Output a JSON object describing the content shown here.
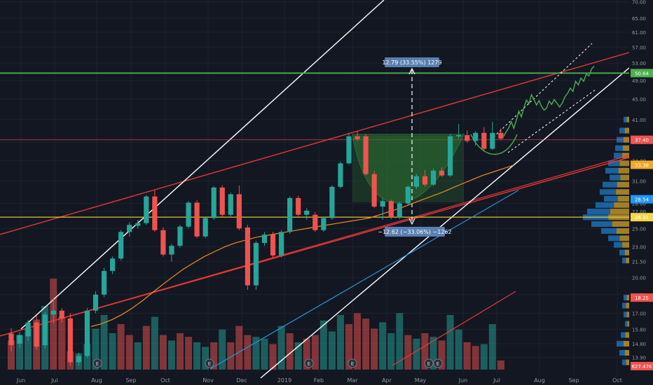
{
  "chart_data": {
    "type": "candlestick",
    "price_axis": {
      "ticks": [
        "70.00",
        "65.00",
        "61.00",
        "57.00",
        "53.00",
        "49.00",
        "45.00",
        "41.00",
        "37.00",
        "34.00",
        "31.00",
        "28.00",
        "27.00",
        "25.00",
        "23.00",
        "21.50",
        "20.00",
        "18.50",
        "17.00",
        "15.80",
        "14.80",
        "13.90"
      ],
      "scale": "log",
      "ylim": [
        13.2,
        70
      ]
    },
    "time_axis": {
      "labels": [
        "Jun",
        "Jul",
        "Aug",
        "Sep",
        "Oct",
        "Nov",
        "Dec",
        "2019",
        "Feb",
        "Mar",
        "Apr",
        "May",
        "Jun",
        "Jul",
        "Aug",
        "Sep",
        "Oct"
      ]
    },
    "price_tags": [
      {
        "text": "50.64",
        "value": 50.64,
        "color": "#4caf50"
      },
      {
        "text": "37.40",
        "value": 37.4,
        "color": "#ef5350"
      },
      {
        "text": "33.38",
        "value": 33.38,
        "color": "#f5a623"
      },
      {
        "text": "28.54",
        "value": 28.54,
        "color": "#2196f3"
      },
      {
        "text": "26.31",
        "value": 26.31,
        "color": "#f5d742"
      },
      {
        "text": "18.25",
        "value": 18.25,
        "color": "#ef5350"
      },
      {
        "text": "627.47K",
        "value": null,
        "color": "#ef5350"
      }
    ],
    "measure_labels": [
      {
        "text": "12.79 (33.55%) 1279"
      },
      {
        "text": "−12.62 (−33.06%) −1262"
      }
    ],
    "earnings_markers": [
      "E",
      "E",
      "E",
      "E",
      "E",
      "E"
    ],
    "candles": [
      {
        "t": "Jun-1",
        "o": 15.5,
        "h": 15.9,
        "l": 14.3,
        "c": 14.7
      },
      {
        "t": "Jun-2",
        "o": 14.8,
        "h": 15.6,
        "l": 14.5,
        "c": 15.4
      },
      {
        "t": "Jun-3",
        "o": 15.3,
        "h": 16.5,
        "l": 15.0,
        "c": 16.3
      },
      {
        "t": "Jun-4",
        "o": 16.3,
        "h": 16.8,
        "l": 14.4,
        "c": 14.6
      },
      {
        "t": "Jul-1",
        "o": 14.7,
        "h": 17.1,
        "l": 14.5,
        "c": 16.9
      },
      {
        "t": "Jul-2",
        "o": 16.9,
        "h": 18.2,
        "l": 16.2,
        "c": 17.2
      },
      {
        "t": "Jul-3",
        "o": 17.2,
        "h": 17.4,
        "l": 16.3,
        "c": 16.6
      },
      {
        "t": "Jul-4",
        "o": 16.6,
        "h": 17.0,
        "l": 13.4,
        "c": 13.6
      },
      {
        "t": "Aug-1",
        "o": 13.6,
        "h": 14.2,
        "l": 13.4,
        "c": 14.0
      },
      {
        "t": "Aug-2",
        "o": 14.0,
        "h": 17.4,
        "l": 13.9,
        "c": 17.2
      },
      {
        "t": "Aug-3",
        "o": 17.2,
        "h": 18.8,
        "l": 17.0,
        "c": 18.5
      },
      {
        "t": "Aug-4",
        "o": 18.5,
        "h": 20.9,
        "l": 18.3,
        "c": 20.6
      },
      {
        "t": "Sep-1",
        "o": 20.6,
        "h": 22.0,
        "l": 20.3,
        "c": 21.8
      },
      {
        "t": "Sep-2",
        "o": 21.8,
        "h": 24.8,
        "l": 21.6,
        "c": 24.6
      },
      {
        "t": "Sep-3",
        "o": 24.6,
        "h": 25.7,
        "l": 24.1,
        "c": 25.4
      },
      {
        "t": "Sep-4",
        "o": 25.3,
        "h": 26.0,
        "l": 25.0,
        "c": 25.6
      },
      {
        "t": "Oct-1",
        "o": 25.6,
        "h": 29.1,
        "l": 25.4,
        "c": 28.9
      },
      {
        "t": "Oct-2",
        "o": 28.9,
        "h": 29.7,
        "l": 24.6,
        "c": 24.8
      },
      {
        "t": "Oct-3",
        "o": 24.8,
        "h": 25.1,
        "l": 22.0,
        "c": 22.2
      },
      {
        "t": "Oct-4",
        "o": 22.2,
        "h": 23.3,
        "l": 21.5,
        "c": 23.1
      },
      {
        "t": "Nov-1",
        "o": 23.1,
        "h": 25.4,
        "l": 22.9,
        "c": 25.2
      },
      {
        "t": "Nov-2",
        "o": 25.2,
        "h": 28.3,
        "l": 25.0,
        "c": 28.1
      },
      {
        "t": "Nov-3",
        "o": 28.1,
        "h": 28.4,
        "l": 23.9,
        "c": 24.1
      },
      {
        "t": "Nov-4",
        "o": 24.1,
        "h": 26.4,
        "l": 23.9,
        "c": 26.2
      },
      {
        "t": "Dec-1",
        "o": 26.2,
        "h": 30.3,
        "l": 26.0,
        "c": 30.1
      },
      {
        "t": "Dec-2",
        "o": 30.1,
        "h": 30.4,
        "l": 26.3,
        "c": 26.6
      },
      {
        "t": "Dec-3",
        "o": 26.6,
        "h": 29.4,
        "l": 26.4,
        "c": 29.2
      },
      {
        "t": "Dec-4",
        "o": 29.2,
        "h": 30.4,
        "l": 24.8,
        "c": 25.0
      },
      {
        "t": "Jan-1",
        "o": 25.1,
        "h": 25.4,
        "l": 18.9,
        "c": 19.3
      },
      {
        "t": "Jan-2",
        "o": 19.3,
        "h": 23.6,
        "l": 18.9,
        "c": 23.4
      },
      {
        "t": "Jan-3",
        "o": 23.4,
        "h": 24.6,
        "l": 23.1,
        "c": 24.3
      },
      {
        "t": "Jan-4",
        "o": 24.3,
        "h": 24.6,
        "l": 21.9,
        "c": 22.1
      },
      {
        "t": "Jan-5",
        "o": 22.1,
        "h": 24.8,
        "l": 21.9,
        "c": 24.6
      },
      {
        "t": "Feb-1",
        "o": 24.6,
        "h": 28.9,
        "l": 24.4,
        "c": 28.7
      },
      {
        "t": "Feb-2",
        "o": 28.7,
        "h": 29.0,
        "l": 26.4,
        "c": 26.6
      },
      {
        "t": "Feb-3",
        "o": 26.6,
        "h": 27.4,
        "l": 26.0,
        "c": 27.1
      },
      {
        "t": "Feb-4",
        "o": 26.6,
        "h": 26.9,
        "l": 24.6,
        "c": 24.8
      },
      {
        "t": "Feb-5",
        "o": 24.8,
        "h": 26.4,
        "l": 24.6,
        "c": 26.2
      },
      {
        "t": "Mar-1",
        "o": 26.2,
        "h": 30.4,
        "l": 26.0,
        "c": 30.2
      },
      {
        "t": "Mar-2",
        "o": 30.2,
        "h": 33.9,
        "l": 30.0,
        "c": 33.6
      },
      {
        "t": "Mar-3",
        "o": 33.6,
        "h": 38.6,
        "l": 33.4,
        "c": 38.0
      },
      {
        "t": "Mar-4",
        "o": 38.0,
        "h": 38.9,
        "l": 37.2,
        "c": 37.5
      },
      {
        "t": "Apr-1",
        "o": 38.0,
        "h": 38.4,
        "l": 31.8,
        "c": 32.0
      },
      {
        "t": "Apr-2",
        "o": 32.0,
        "h": 32.5,
        "l": 27.4,
        "c": 27.6
      },
      {
        "t": "Apr-3",
        "o": 27.6,
        "h": 28.7,
        "l": 26.0,
        "c": 28.3
      },
      {
        "t": "Apr-4",
        "o": 28.3,
        "h": 28.5,
        "l": 26.1,
        "c": 26.3
      },
      {
        "t": "May-1",
        "o": 26.3,
        "h": 28.2,
        "l": 26.1,
        "c": 28.0
      },
      {
        "t": "May-2",
        "o": 28.0,
        "h": 30.4,
        "l": 27.8,
        "c": 30.2
      },
      {
        "t": "May-3",
        "o": 30.2,
        "h": 32.0,
        "l": 29.9,
        "c": 31.7
      },
      {
        "t": "May-4",
        "o": 31.7,
        "h": 32.6,
        "l": 30.2,
        "c": 30.5
      },
      {
        "t": "May-5",
        "o": 30.5,
        "h": 32.8,
        "l": 30.3,
        "c": 32.5
      },
      {
        "t": "Jun-5",
        "o": 32.5,
        "h": 33.0,
        "l": 31.6,
        "c": 31.8
      },
      {
        "t": "Jun-6",
        "o": 31.8,
        "h": 38.4,
        "l": 31.6,
        "c": 38.0
      },
      {
        "t": "Jun-7",
        "o": 38.0,
        "h": 40.2,
        "l": 37.6,
        "c": 38.2
      },
      {
        "t": "Jun-8",
        "o": 38.2,
        "h": 39.0,
        "l": 36.9,
        "c": 37.2
      },
      {
        "t": "Jun-9",
        "o": 37.2,
        "h": 38.9,
        "l": 36.4,
        "c": 38.6
      },
      {
        "t": "Jul-5",
        "o": 38.6,
        "h": 39.6,
        "l": 35.6,
        "c": 35.9
      },
      {
        "t": "Jul-6",
        "o": 35.9,
        "h": 40.6,
        "l": 35.7,
        "c": 38.6
      },
      {
        "t": "Jul-7",
        "o": 38.6,
        "h": 39.4,
        "l": 37.3,
        "c": 37.6
      }
    ],
    "daily_closes": [
      38.0,
      38.8,
      39.5,
      40.6,
      39.4,
      40.9,
      42.6,
      41.5,
      43.3,
      44.8,
      44.1,
      45.9,
      44.9,
      43.8,
      44.7,
      43.5,
      42.8,
      43.2,
      44.6,
      43.9,
      44.9,
      43.4,
      44.2,
      45.5,
      46.2,
      47.3,
      46.6,
      48.8,
      48.0,
      49.5,
      48.8,
      50.4,
      50.0,
      51.6,
      52.3
    ],
    "volume": [
      {
        "v": 0.32,
        "up": false
      },
      {
        "v": 0.38,
        "up": true
      },
      {
        "v": 0.45,
        "up": true
      },
      {
        "v": 0.55,
        "up": false
      },
      {
        "v": 0.7,
        "up": true
      },
      {
        "v": 1.0,
        "up": false
      },
      {
        "v": 0.58,
        "up": false
      },
      {
        "v": 0.2,
        "up": false
      },
      {
        "v": 0.18,
        "up": true
      },
      {
        "v": 0.28,
        "up": true
      },
      {
        "v": 0.45,
        "up": true
      },
      {
        "v": 0.6,
        "up": true
      },
      {
        "v": 0.4,
        "up": true
      },
      {
        "v": 0.5,
        "up": false
      },
      {
        "v": 0.38,
        "up": false
      },
      {
        "v": 0.3,
        "up": true
      },
      {
        "v": 0.48,
        "up": false
      },
      {
        "v": 0.58,
        "up": true
      },
      {
        "v": 0.38,
        "up": false
      },
      {
        "v": 0.32,
        "up": true
      },
      {
        "v": 0.4,
        "up": false
      },
      {
        "v": 0.36,
        "up": false
      },
      {
        "v": 0.3,
        "up": true
      },
      {
        "v": 0.25,
        "up": true
      },
      {
        "v": 0.3,
        "up": false
      },
      {
        "v": 0.44,
        "up": true
      },
      {
        "v": 0.3,
        "up": false
      },
      {
        "v": 0.48,
        "up": false
      },
      {
        "v": 0.38,
        "up": false
      },
      {
        "v": 0.36,
        "up": true
      },
      {
        "v": 0.34,
        "up": true
      },
      {
        "v": 0.28,
        "up": false
      },
      {
        "v": 0.48,
        "up": true
      },
      {
        "v": 0.4,
        "up": false
      },
      {
        "v": 0.3,
        "up": true
      },
      {
        "v": 0.34,
        "up": false
      },
      {
        "v": 0.38,
        "up": false
      },
      {
        "v": 0.54,
        "up": true
      },
      {
        "v": 0.42,
        "up": true
      },
      {
        "v": 0.6,
        "up": true
      },
      {
        "v": 0.5,
        "up": false
      },
      {
        "v": 0.62,
        "up": false
      },
      {
        "v": 0.56,
        "up": false
      },
      {
        "v": 0.45,
        "up": false
      },
      {
        "v": 0.52,
        "up": true
      },
      {
        "v": 0.4,
        "up": true
      },
      {
        "v": 0.62,
        "up": true
      },
      {
        "v": 0.38,
        "up": false
      },
      {
        "v": 0.34,
        "up": true
      },
      {
        "v": 0.4,
        "up": false
      },
      {
        "v": 0.36,
        "up": true
      },
      {
        "v": 0.32,
        "up": false
      },
      {
        "v": 0.6,
        "up": true
      },
      {
        "v": 0.44,
        "up": true
      },
      {
        "v": 0.3,
        "up": false
      },
      {
        "v": 0.26,
        "up": false
      },
      {
        "v": 0.28,
        "up": true
      },
      {
        "v": 0.5,
        "up": true
      },
      {
        "v": 0.1,
        "up": false
      }
    ]
  }
}
